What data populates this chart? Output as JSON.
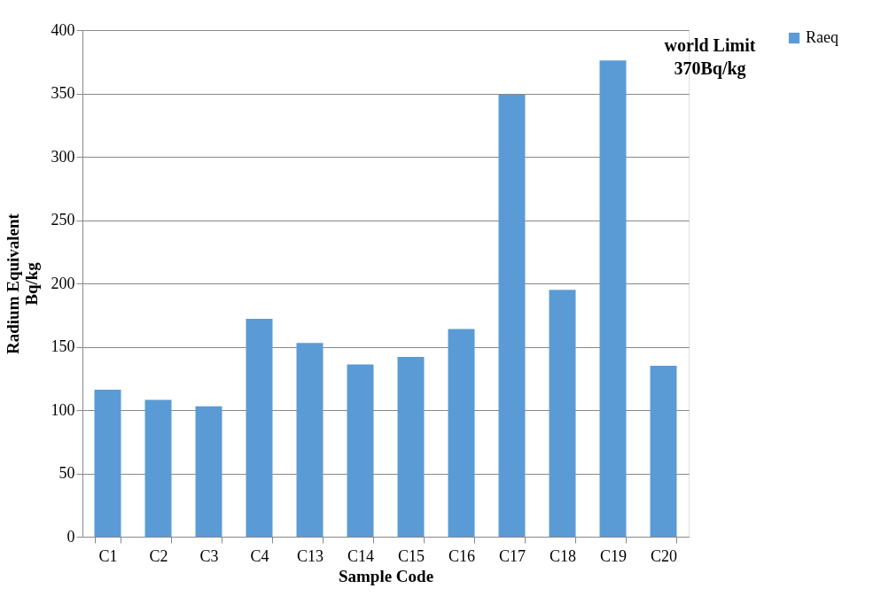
{
  "chart_data": {
    "type": "bar",
    "xlabel": "Sample Code",
    "ylabel": "Radium Equivalent\nBq/kg",
    "categories": [
      "C1",
      "C2",
      "C3",
      "C4",
      "C13",
      "C14",
      "C15",
      "C16",
      "C17",
      "C18",
      "C19",
      "C20"
    ],
    "series": [
      {
        "name": "Raeq",
        "color": "#5b9bd5",
        "values": [
          116,
          108,
          103,
          172,
          153,
          136,
          142,
          164,
          349,
          195,
          376,
          135
        ]
      }
    ],
    "ylim": [
      0,
      400
    ],
    "yticks": [
      0,
      50,
      100,
      150,
      200,
      250,
      300,
      350,
      400
    ],
    "grid": "y",
    "legend": "right",
    "annotations": [
      "world Limit\n370Bq/kg"
    ]
  }
}
